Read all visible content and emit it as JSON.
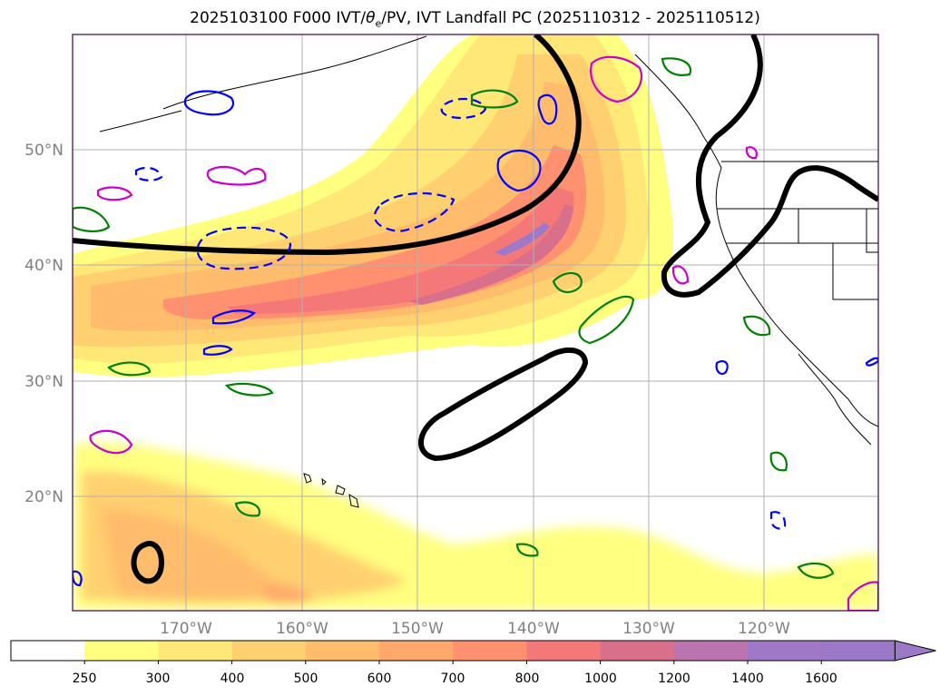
{
  "title": {
    "prefix": "2025103100 F000 IVT/",
    "theta_symbol": "θ",
    "theta_sub": "e",
    "suffix": "/PV, IVT Landfall PC (2025110312 - 2025110512)"
  },
  "map": {
    "lat_labels": [
      "50°N",
      "40°N",
      "30°N",
      "20°N"
    ],
    "lon_labels": [
      "170°W",
      "160°W",
      "150°W",
      "140°W",
      "130°W",
      "120°W"
    ],
    "grid": true,
    "coastline_color": "#000000",
    "grid_color": "#b0b0b0"
  },
  "colorbar": {
    "levels": [
      "250",
      "300",
      "400",
      "500",
      "600",
      "700",
      "800",
      "1000",
      "1200",
      "1400",
      "1600"
    ],
    "colors": [
      "#ffffff",
      "#ffff80",
      "#ffe878",
      "#ffd070",
      "#ffbc6c",
      "#ffa86c",
      "#ff9070",
      "#f47878",
      "#d8708c",
      "#bc74b0",
      "#a078c8",
      "#9c78c8"
    ],
    "extend": "max"
  },
  "contours": {
    "ivt_landfall_pc_color": "#000000",
    "pv_positive_color": "#0000ff",
    "pv_negative_style": "dashed",
    "theta_e_color": "#008000",
    "magenta_color": "#cc00cc"
  }
}
